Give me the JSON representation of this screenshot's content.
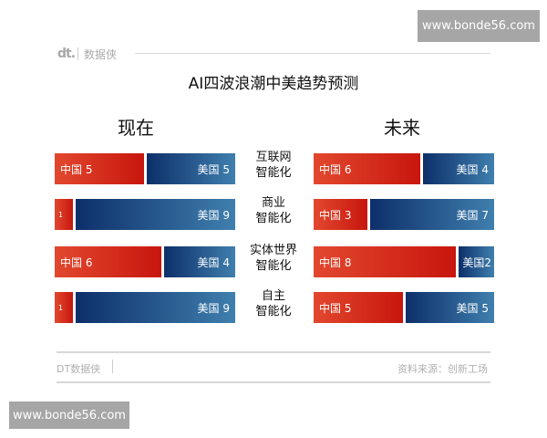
{
  "watermark": "www.bonde56.com",
  "header": {
    "logo": "dt.",
    "brand": "数据侠"
  },
  "chart_data": {
    "type": "bar",
    "stacked": true,
    "orientation": "horizontal",
    "title": "AI四波浪潮中美趋势预测",
    "panels": [
      {
        "title": "现在",
        "categories": [
          "互联网智能化",
          "商业智能化",
          "实体世界智能化",
          "自主智能化"
        ],
        "series": [
          {
            "name": "中国",
            "values": [
              5,
              1,
              6,
              1
            ]
          },
          {
            "name": "美国",
            "values": [
              5,
              9,
              4,
              9
            ]
          }
        ],
        "labels": {
          "中国": [
            "中国 5",
            "1",
            "中国 6",
            "1"
          ],
          "美国": [
            "美国 5",
            "美国 9",
            "美国 4",
            "美国  9"
          ]
        }
      },
      {
        "title": "未来",
        "categories": [
          "互联网智能化",
          "商业智能化",
          "实体世界智能化",
          "自主智能化"
        ],
        "series": [
          {
            "name": "中国",
            "values": [
              6,
              3,
              8,
              5
            ]
          },
          {
            "name": "美国",
            "values": [
              4,
              7,
              2,
              5
            ]
          }
        ],
        "labels": {
          "中国": [
            "中国 6",
            "中国 3",
            "中国 8",
            "中国 5"
          ],
          "美国": [
            "美国 4",
            "美国 7",
            "美国2",
            "美国 5"
          ]
        }
      }
    ],
    "category_lines": [
      [
        "互联网",
        "智能化"
      ],
      [
        "商业",
        "智能化"
      ],
      [
        "实体世界",
        "智能化"
      ],
      [
        "自主",
        "智能化"
      ]
    ],
    "colors": {
      "中国": "#d42a18",
      "美国": "#1f4f8a"
    }
  },
  "footer": {
    "left": "DT数据侠",
    "right": "资料来源：创新工场"
  }
}
